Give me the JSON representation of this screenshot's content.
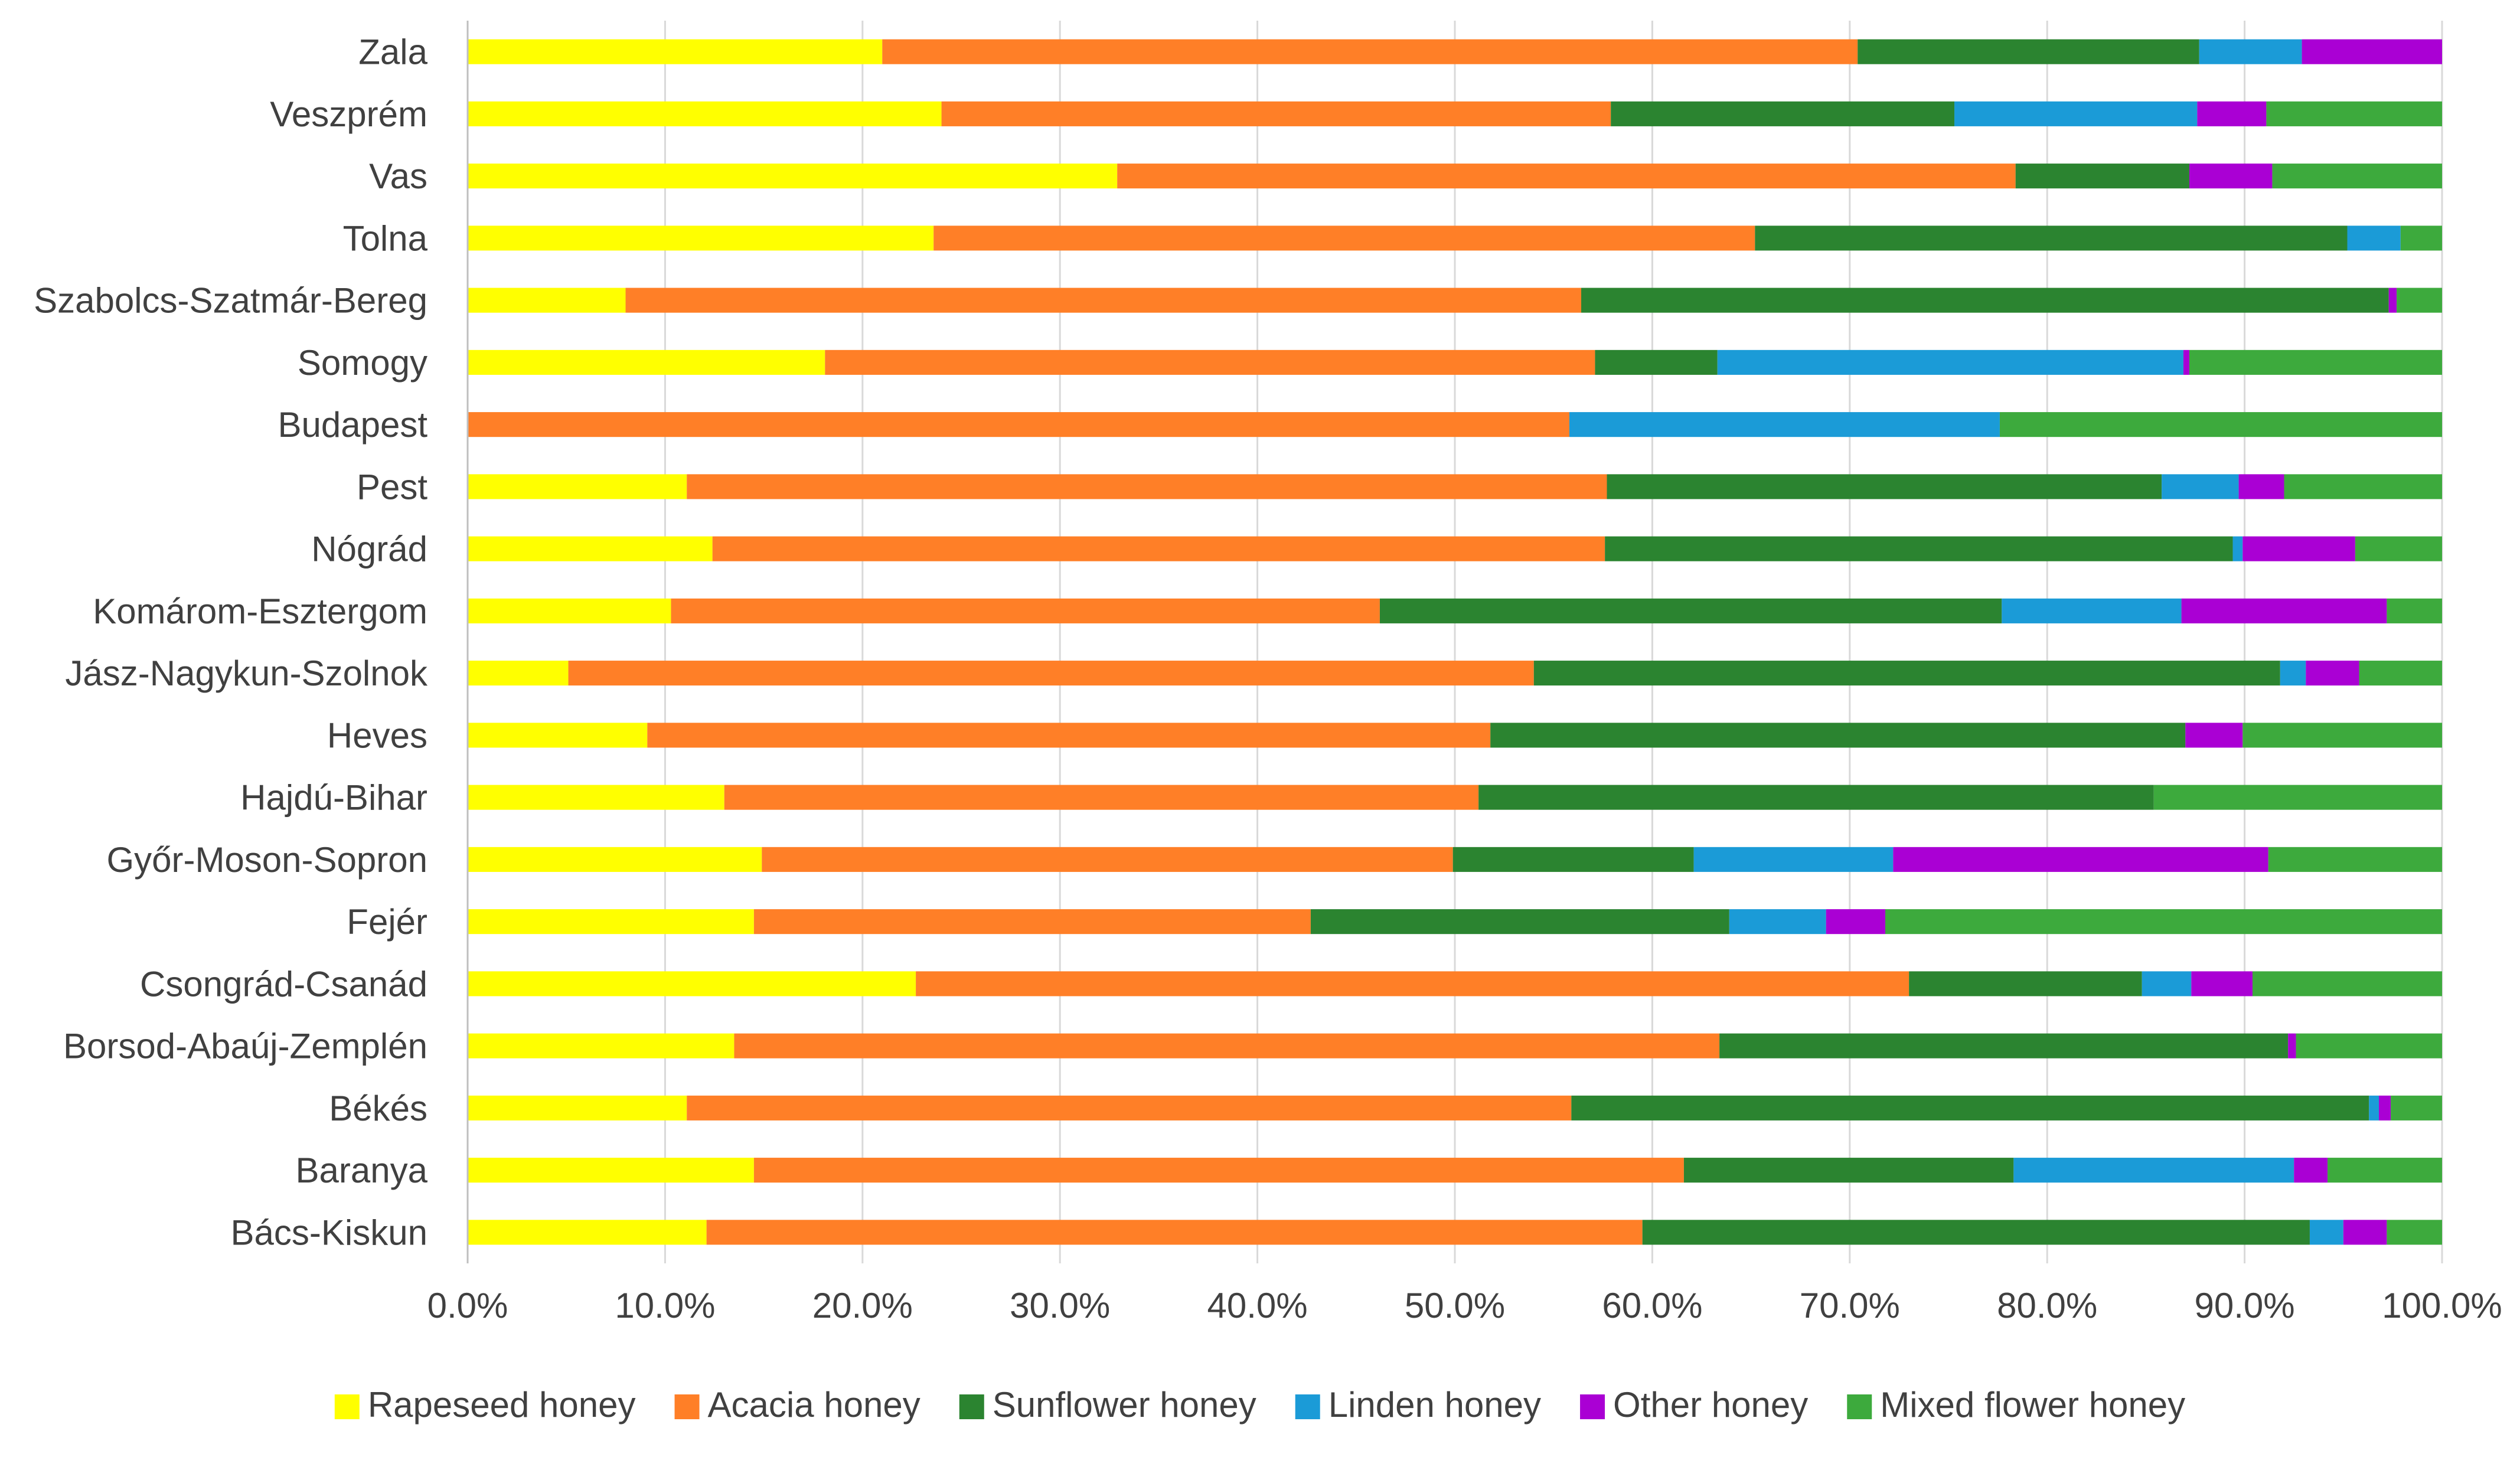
{
  "chart_data": {
    "type": "bar",
    "orientation": "horizontal",
    "stacked": "percent",
    "title": "",
    "xlabel": "",
    "ylabel": "",
    "xlim": [
      0,
      100
    ],
    "grid": true,
    "legend_position": "bottom",
    "categories": [
      "Zala",
      "Veszprém",
      "Vas",
      "Tolna",
      "Szabolcs-Szatmár-Bereg",
      "Somogy",
      "Budapest",
      "Pest",
      "Nógrád",
      "Komárom-Esztergom",
      "Jász-Nagykun-Szolnok",
      "Heves",
      "Hajdú-Bihar",
      "Győr-Moson-Sopron",
      "Fejér",
      "Csongrád-Csanád",
      "Borsod-Abaúj-Zemplén",
      "Békés",
      "Baranya",
      "Bács-Kiskun"
    ],
    "x_ticks": [
      "0.0%",
      "10.0%",
      "20.0%",
      "30.0%",
      "40.0%",
      "50.0%",
      "60.0%",
      "70.0%",
      "80.0%",
      "90.0%",
      "100.0%"
    ],
    "series": [
      {
        "name": "Rapeseed honey",
        "color": "#FFFF00",
        "values": [
          21.0,
          24.0,
          32.9,
          23.6,
          8.0,
          18.1,
          0.0,
          11.1,
          12.4,
          10.3,
          5.1,
          9.1,
          13.0,
          14.9,
          14.5,
          22.7,
          13.5,
          11.1,
          14.5,
          12.1
        ]
      },
      {
        "name": "Acacia honey",
        "color": "#FF7F27",
        "values": [
          49.4,
          33.9,
          45.5,
          41.6,
          48.4,
          39.0,
          55.8,
          46.6,
          45.2,
          35.9,
          48.9,
          42.7,
          38.2,
          35.0,
          28.2,
          50.3,
          49.9,
          44.8,
          47.1,
          47.4
        ]
      },
      {
        "name": "Sunflower honey",
        "color": "#2B8430",
        "values": [
          17.3,
          17.4,
          8.8,
          30.0,
          40.9,
          6.2,
          0.0,
          28.1,
          31.8,
          31.5,
          37.8,
          35.2,
          34.2,
          12.2,
          21.2,
          11.8,
          28.8,
          40.4,
          16.7,
          33.8
        ]
      },
      {
        "name": "Linden honey",
        "color": "#1B9BD7",
        "values": [
          5.2,
          12.3,
          0.0,
          2.7,
          0.0,
          23.6,
          21.8,
          3.9,
          0.5,
          9.1,
          1.3,
          0.0,
          0.0,
          10.1,
          4.9,
          2.5,
          0.0,
          0.5,
          14.2,
          1.7
        ]
      },
      {
        "name": "Other honey",
        "color": "#AA00D4",
        "values": [
          7.1,
          3.5,
          4.2,
          0.0,
          0.4,
          0.3,
          0.0,
          2.3,
          5.7,
          10.4,
          2.7,
          2.9,
          0.0,
          19.0,
          3.0,
          3.1,
          0.4,
          0.6,
          1.7,
          2.2
        ]
      },
      {
        "name": "Mixed flower honey",
        "color": "#3DAA3D",
        "values": [
          0.0,
          8.9,
          8.6,
          2.1,
          2.3,
          12.8,
          22.4,
          8.0,
          4.4,
          2.8,
          4.2,
          10.1,
          14.6,
          8.8,
          28.2,
          9.6,
          7.4,
          2.6,
          5.8,
          2.8
        ]
      }
    ]
  }
}
